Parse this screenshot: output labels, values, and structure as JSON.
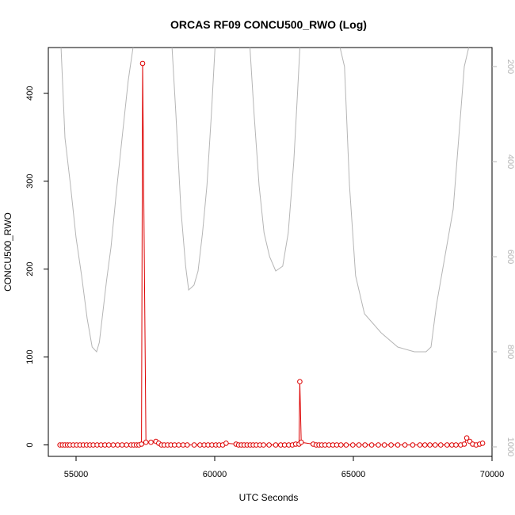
{
  "chart_data": {
    "type": "scatter",
    "title": "ORCAS RF09 CONCU500_RWO (Log)",
    "xlabel": "UTC Seconds",
    "ylabel": "CONCU500_RWO",
    "xlim": [
      54000,
      70000
    ],
    "ylim": [
      -13,
      452
    ],
    "x_ticks": [
      55000,
      60000,
      65000,
      70000
    ],
    "y_ticks": [
      0,
      100,
      200,
      300,
      400
    ],
    "y2_ticks": [
      200,
      400,
      600,
      800,
      1000
    ],
    "y2lim_reversed": [
      160,
      1020
    ],
    "colors": {
      "series": "#dd0000",
      "altitude": "#b5b5b5"
    },
    "series": [
      {
        "name": "CONCU500_RWO",
        "x": [
          54420,
          54510,
          54600,
          54690,
          54780,
          54900,
          55020,
          55140,
          55260,
          55380,
          55500,
          55620,
          55760,
          55900,
          56040,
          56180,
          56340,
          56500,
          56660,
          56820,
          56980,
          57080,
          57180,
          57270,
          57360,
          57400,
          57520,
          57700,
          57880,
          57980,
          58080,
          58180,
          58300,
          58420,
          58550,
          58700,
          58860,
          59010,
          59260,
          59470,
          59620,
          59760,
          59900,
          60040,
          60160,
          60290,
          60410,
          60770,
          60860,
          60960,
          61060,
          61170,
          61280,
          61390,
          61500,
          61630,
          61760,
          61960,
          62200,
          62380,
          62520,
          62670,
          62800,
          62920,
          63040,
          63070,
          63120,
          63550,
          63660,
          63760,
          63860,
          63980,
          64120,
          64260,
          64400,
          64550,
          64740,
          64980,
          65200,
          65420,
          65660,
          65900,
          66120,
          66360,
          66600,
          66860,
          67140,
          67400,
          67580,
          67760,
          67950,
          68150,
          68380,
          68550,
          68700,
          68870,
          69000,
          69090,
          69200,
          69300,
          69430,
          69550,
          69660
        ],
        "values": [
          0,
          0,
          0,
          0,
          0,
          0,
          0,
          0,
          0,
          0,
          0,
          0,
          0,
          0,
          0,
          0,
          0,
          0,
          0,
          0,
          0,
          0,
          0,
          0,
          1,
          434,
          3,
          3,
          4,
          2,
          0,
          0,
          0,
          0,
          0,
          0,
          0,
          0,
          0,
          0,
          0,
          0,
          0,
          0,
          0,
          0,
          2,
          1,
          0,
          0,
          0,
          0,
          0,
          0,
          0,
          0,
          0,
          0,
          0,
          0,
          0,
          0,
          0,
          1,
          1,
          72,
          3,
          1,
          0,
          0,
          0,
          0,
          0,
          0,
          0,
          0,
          0,
          0,
          0,
          0,
          0,
          0,
          0,
          0,
          0,
          0,
          0,
          0,
          0,
          0,
          0,
          0,
          0,
          0,
          0,
          0,
          1,
          8,
          4,
          1,
          0,
          1,
          2
        ]
      },
      {
        "name": "",
        "axis": "right",
        "x": [
          54350,
          54450,
          54600,
          54800,
          55000,
          55200,
          55400,
          55580,
          55740,
          55840,
          55960,
          56100,
          56260,
          56460,
          56660,
          56880,
          57080,
          57240,
          57370,
          57480,
          57600,
          57740,
          57880,
          57960,
          58100,
          58200,
          58300,
          58450,
          58600,
          58780,
          58950,
          59060,
          59250,
          59400,
          59560,
          59720,
          59880,
          60020,
          60140,
          60300,
          60420,
          60550,
          60700,
          60800,
          60900,
          61080,
          61260,
          61420,
          61600,
          61780,
          61980,
          62200,
          62450,
          62650,
          62850,
          62990,
          63080,
          63160,
          63300,
          63450,
          63600,
          63750,
          63900,
          64080,
          64280,
          64480,
          64680,
          64860,
          65080,
          65400,
          66000,
          66600,
          67200,
          67450,
          67620,
          67800,
          68000,
          68300,
          68600,
          68800,
          69000,
          69200,
          69400,
          69550
        ],
        "values": [
          150,
          150,
          350,
          450,
          560,
          640,
          730,
          790,
          800,
          780,
          720,
          650,
          580,
          460,
          350,
          230,
          150,
          150,
          150,
          150,
          150,
          150,
          150,
          150,
          150,
          150,
          150,
          150,
          300,
          500,
          620,
          670,
          660,
          630,
          550,
          450,
          300,
          150,
          150,
          150,
          150,
          150,
          150,
          150,
          150,
          150,
          150,
          300,
          450,
          550,
          600,
          630,
          620,
          550,
          400,
          250,
          150,
          150,
          150,
          150,
          150,
          150,
          150,
          150,
          150,
          150,
          200,
          450,
          640,
          720,
          760,
          790,
          800,
          800,
          800,
          790,
          700,
          600,
          500,
          350,
          200,
          150,
          150,
          150
        ]
      }
    ]
  }
}
